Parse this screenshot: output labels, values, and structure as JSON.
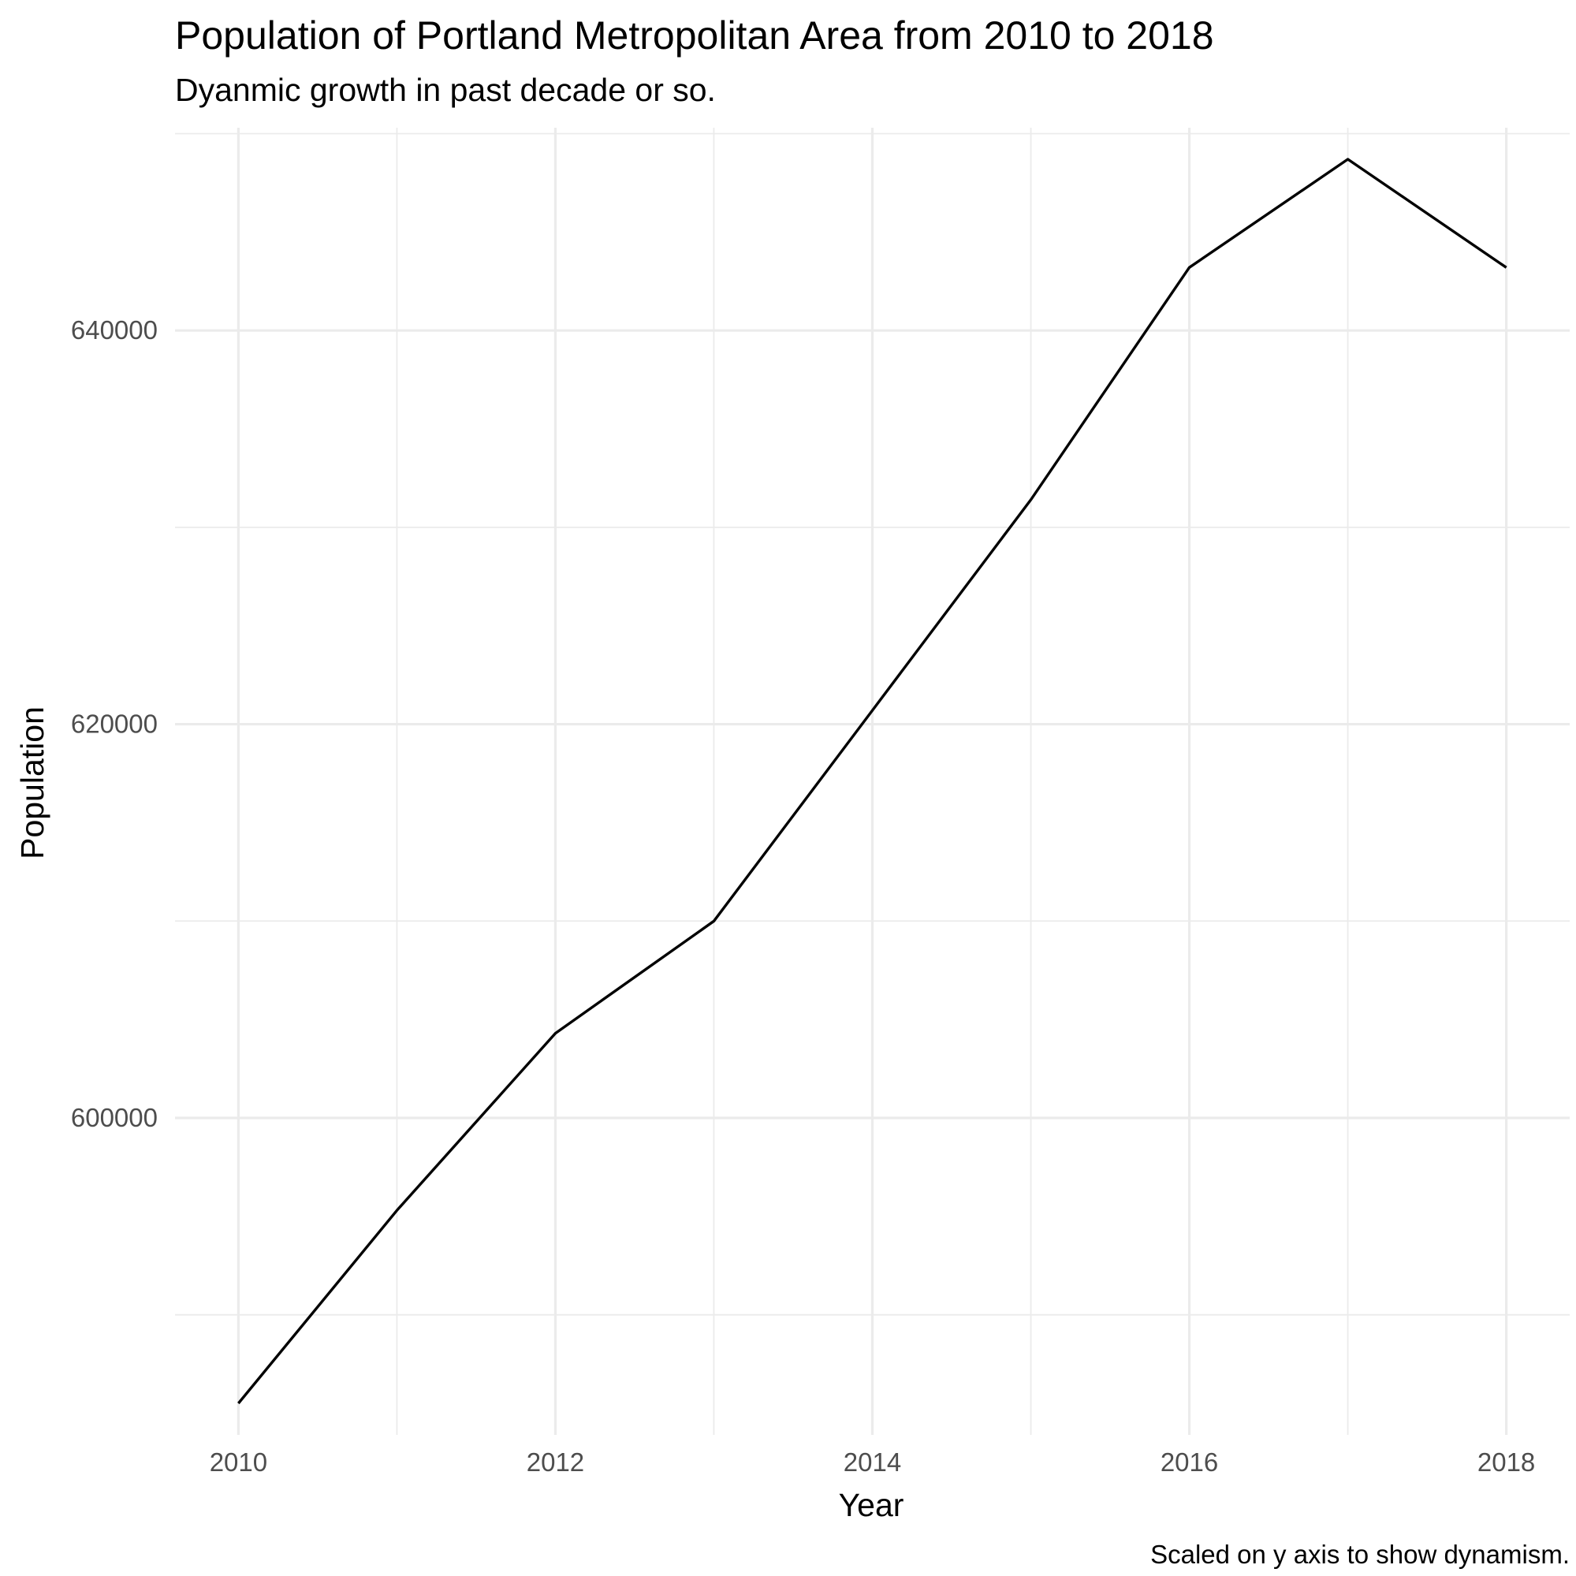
{
  "chart_data": {
    "type": "line",
    "title": "Population of Portland Metropolitan Area from 2010 to 2018",
    "subtitle": "Dyanmic growth in past decade or so.",
    "caption": "Scaled on y axis to show dynamism.",
    "xlabel": "Year",
    "ylabel": "Population",
    "x": [
      2010,
      2011,
      2012,
      2013,
      2014,
      2015,
      2016,
      2017,
      2018
    ],
    "series": [
      {
        "values": [
          585500,
          595300,
          604300,
          610000,
          620700,
          631400,
          643200,
          648700,
          643200
        ]
      }
    ],
    "xlim": [
      2009.6,
      2018.4
    ],
    "ylim": [
      583900,
      650300
    ],
    "x_ticks": [
      2010,
      2012,
      2014,
      2016,
      2018
    ],
    "x_tick_labels": [
      "2010",
      "2012",
      "2014",
      "2016",
      "2018"
    ],
    "x_minor_ticks": [
      2011,
      2013,
      2015,
      2017
    ],
    "y_ticks": [
      600000,
      620000,
      640000
    ],
    "y_tick_labels": [
      "600000",
      "620000",
      "640000"
    ],
    "y_minor_ticks": [
      590000,
      610000,
      630000,
      650000
    ],
    "grid": true,
    "legend": "none",
    "line_color": "#000000",
    "grid_color": "#ebebeb"
  }
}
